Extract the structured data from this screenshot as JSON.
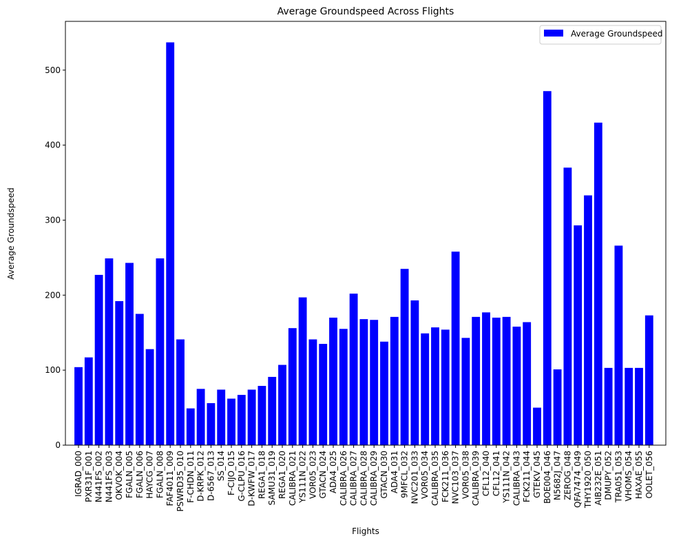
{
  "chart_data": {
    "type": "bar",
    "title": "Average Groundspeed Across Flights",
    "xlabel": "Flights",
    "ylabel": "Average Groundspeed",
    "ylim": [
      0,
      565
    ],
    "yticks": [
      0,
      100,
      200,
      300,
      400,
      500
    ],
    "grid": false,
    "legend_position": "top-right",
    "series": [
      {
        "name": "Average Groundspeed",
        "color": "#0000ff",
        "values": [
          104,
          117,
          227,
          249,
          192,
          243,
          175,
          128,
          249,
          537,
          141,
          49,
          75,
          56,
          74,
          62,
          67,
          74,
          79,
          91,
          107,
          156,
          197,
          141,
          135,
          170,
          155,
          202,
          168,
          167,
          138,
          171,
          235,
          193,
          149,
          157,
          154,
          258,
          143,
          171,
          177,
          170,
          171,
          158,
          164,
          50,
          472,
          101,
          370,
          293,
          333,
          430,
          103,
          266,
          103,
          103,
          173
        ]
      }
    ],
    "categories": [
      "IGRAD_000",
      "PXR31F_001",
      "N441FS_002",
      "N441FS_003",
      "OKVOK_004",
      "FGALN_005",
      "FGALN_006",
      "HAYCG_007",
      "FGALN_008",
      "FAF4011_009",
      "PSWRD35_010",
      "F-CHDN_011",
      "D-KRPK_012",
      "D-6567_013",
      "SS_014",
      "F-CIJO_015",
      "G-CLPU_016",
      "D-KWFW_017",
      "REGA1_018",
      "SAMU31_019",
      "REGA1_020",
      "CALIBRA_021",
      "YS111N_022",
      "VOR05_023",
      "GTACN_024",
      "ADA4_025",
      "CALIBRA_026",
      "CALIBRA_027",
      "CALIBRA_028",
      "CALIBRA_029",
      "GTACN_030",
      "ADA4_031",
      "9MFCL_032",
      "NVC201_033",
      "VOR05_034",
      "CALIBRA_035",
      "FCK211_036",
      "NVC103_037",
      "VOR05_038",
      "CALIBRA_039",
      "CFL12_040",
      "CFL12_041",
      "YS111N_042",
      "CALIBRA_043",
      "FCK211_044",
      "GTEKV_045",
      "BOE004_046",
      "N5682J_047",
      "ZEROG_048",
      "QFA7474_049",
      "THY1920_050",
      "AIB232E_051",
      "DMUPY_052",
      "TRA051_053",
      "VHOMS_054",
      "HAXAE_055",
      "OOLET_056"
    ]
  }
}
